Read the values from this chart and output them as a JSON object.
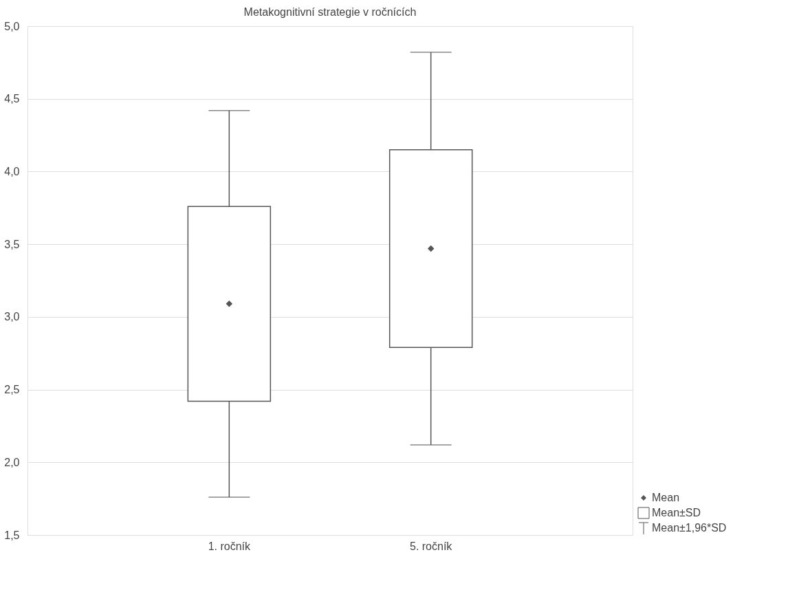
{
  "chart_data": {
    "type": "box",
    "title": "Metakognitivní strategie v ročnících",
    "categories": [
      "1. ročník",
      "5. ročník"
    ],
    "boxes": [
      {
        "low": 1.76,
        "q1": 2.42,
        "q3": 3.76,
        "high": 4.42,
        "mean": 3.09
      },
      {
        "low": 2.12,
        "q1": 2.79,
        "q3": 4.15,
        "high": 4.82,
        "mean": 3.47
      }
    ],
    "ylim": [
      1.5,
      5.0
    ],
    "yticks": [
      {
        "value": 1.5,
        "label": "1,5"
      },
      {
        "value": 2.0,
        "label": "2,0"
      },
      {
        "value": 2.5,
        "label": "2,5"
      },
      {
        "value": 3.0,
        "label": "3,0"
      },
      {
        "value": 3.5,
        "label": "3,5"
      },
      {
        "value": 4.0,
        "label": "4,0"
      },
      {
        "value": 4.5,
        "label": "4,5"
      },
      {
        "value": 5.0,
        "label": "5,0"
      }
    ],
    "grid": "y",
    "marker": "diamond",
    "annotations": [
      "Mean",
      "Mean±SD",
      "Mean±1,96*SD"
    ]
  }
}
